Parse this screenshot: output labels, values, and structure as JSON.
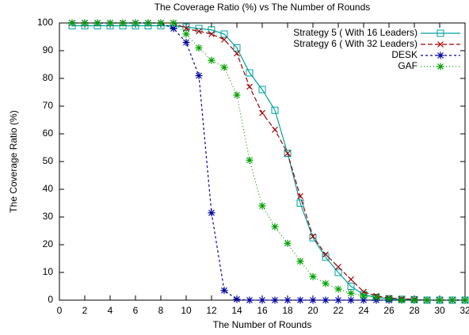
{
  "chart_data": {
    "type": "line",
    "title": "The Coverage Ratio (%) vs The Number of Rounds",
    "x_label": "The Number of Rounds",
    "y_label": "The Coverage Ratio (%)",
    "x": [
      1,
      2,
      3,
      4,
      5,
      6,
      7,
      8,
      9,
      10,
      11,
      12,
      13,
      14,
      15,
      16,
      17,
      18,
      19,
      20,
      21,
      22,
      23,
      24,
      25,
      26,
      27,
      28,
      29,
      30,
      31,
      32
    ],
    "series": [
      {
        "name": "Strategy 5 ( With 16 Leaders)",
        "color": "#00a0a0",
        "marker": "square",
        "dash": "none",
        "values": [
          99,
          99,
          99,
          99,
          99,
          99,
          99,
          99,
          99,
          98.5,
          98,
          97.5,
          96,
          91,
          82,
          76,
          68.5,
          53,
          35,
          22.5,
          15.5,
          10,
          5,
          2,
          1,
          0.5,
          0.3,
          0.2,
          0,
          0,
          0,
          0
        ]
      },
      {
        "name": "Strategy 6 ( With 32 Leaders)",
        "color": "#a00000",
        "marker": "x",
        "dash": "6,3",
        "values": [
          100,
          100,
          100,
          100,
          100,
          100,
          100,
          100,
          100,
          98,
          97,
          96,
          94,
          89,
          77,
          67.5,
          61.5,
          53,
          37.5,
          23,
          16.5,
          12,
          7.5,
          3,
          1.5,
          0.8,
          0.5,
          0.3,
          0,
          0,
          0,
          0
        ]
      },
      {
        "name": "DESK",
        "color": "#0000a0",
        "marker": "star",
        "dash": "3,3",
        "values": [
          100,
          100,
          100,
          100,
          100,
          100,
          100,
          100,
          98,
          93,
          81,
          31.5,
          3.5,
          0.3,
          0,
          0,
          0,
          0,
          0,
          0,
          0,
          0,
          0,
          0,
          0,
          0,
          0,
          0,
          0,
          0,
          0,
          0
        ]
      },
      {
        "name": "GAF",
        "color": "#00a000",
        "marker": "star",
        "dash": "1,3",
        "values": [
          100,
          100,
          100,
          100,
          100,
          100,
          100,
          100,
          100,
          96,
          91,
          86.5,
          84,
          74,
          50.5,
          34,
          26.5,
          20.5,
          14,
          8.5,
          6,
          4,
          2.5,
          1.5,
          1,
          0.5,
          0,
          0,
          0,
          0,
          0,
          0
        ]
      }
    ],
    "xlim": [
      0,
      32
    ],
    "xticks": [
      0,
      2,
      4,
      6,
      8,
      10,
      12,
      14,
      16,
      18,
      20,
      22,
      24,
      26,
      28,
      30,
      32
    ],
    "ylim": [
      0,
      100
    ],
    "yticks": [
      0,
      10,
      20,
      30,
      40,
      50,
      60,
      70,
      80,
      90,
      100
    ],
    "legend": "top-right"
  }
}
